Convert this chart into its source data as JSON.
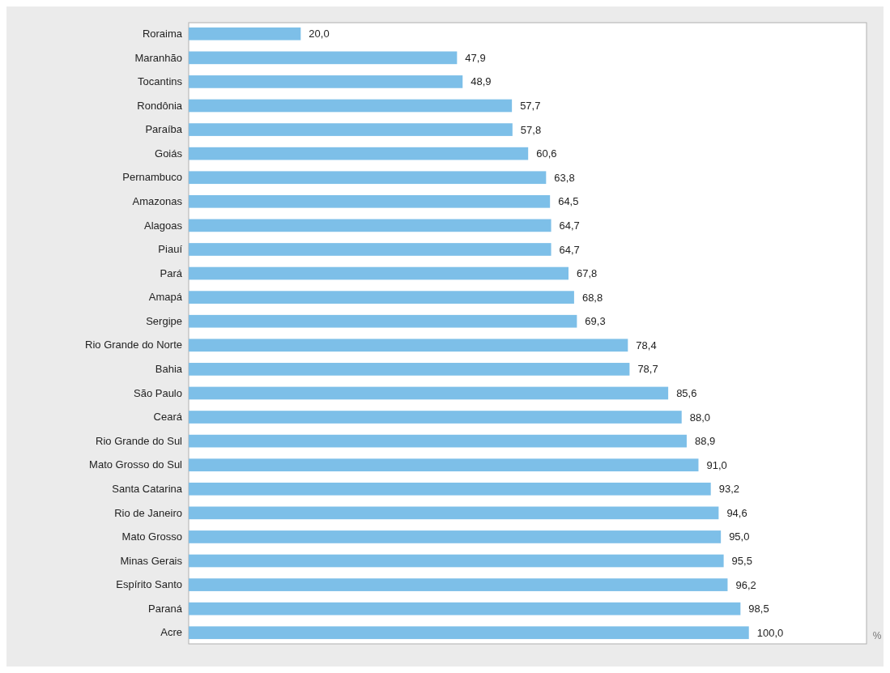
{
  "chart_data": {
    "type": "bar",
    "orientation": "horizontal",
    "xlabel": "%",
    "tick_labels": "y",
    "xlim": [
      0,
      121
    ],
    "color": "#7dbfe8",
    "categories": [
      "Roraima",
      "Maranhão",
      "Tocantins",
      "Rondônia",
      "Paraíba",
      "Goiás",
      "Pernambuco",
      "Amazonas",
      "Alagoas",
      "Piauí",
      "Pará",
      "Amapá",
      "Sergipe",
      "Rio Grande do Norte",
      "Bahia",
      "São Paulo",
      "Ceará",
      "Rio Grande do Sul",
      "Mato Grosso do Sul",
      "Santa Catarina",
      "Rio de Janeiro",
      "Mato Grosso",
      "Minas Gerais",
      "Espírito Santo",
      "Paraná",
      "Acre"
    ],
    "values": [
      20.0,
      47.9,
      48.9,
      57.7,
      57.8,
      60.6,
      63.8,
      64.5,
      64.7,
      64.7,
      67.8,
      68.8,
      69.3,
      78.4,
      78.7,
      85.6,
      88.0,
      88.9,
      91.0,
      93.2,
      94.6,
      95.0,
      95.5,
      96.2,
      98.5,
      100.0
    ],
    "value_labels": [
      "20,0",
      "47,9",
      "48,9",
      "57,7",
      "57,8",
      "60,6",
      "63,8",
      "64,5",
      "64,7",
      "64,7",
      "67,8",
      "68,8",
      "69,3",
      "78,4",
      "78,7",
      "85,6",
      "88,0",
      "88,9",
      "91,0",
      "93,2",
      "94,6",
      "95,0",
      "95,5",
      "96,2",
      "98,5",
      "100,0"
    ]
  }
}
